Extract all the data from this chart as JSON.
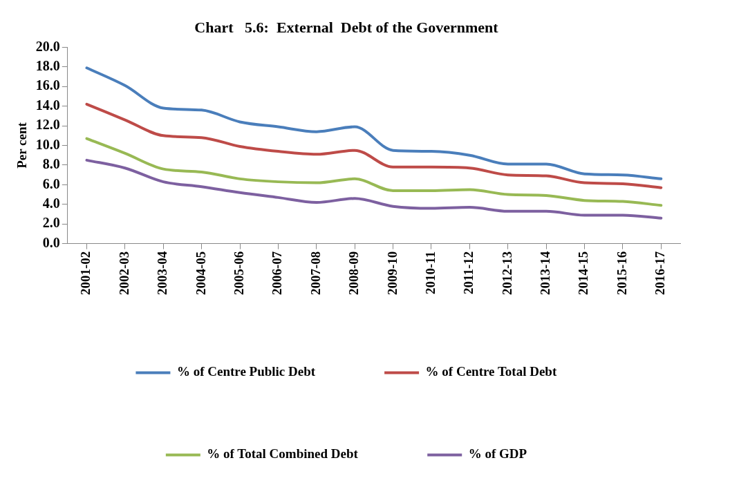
{
  "chart_data": {
    "type": "line",
    "title": "Chart   5.6:  External  Debt of the Government",
    "ylabel": "Per cent",
    "categories": [
      "2001-02",
      "2002-03",
      "2003-04",
      "2004-05",
      "2005-06",
      "2006-07",
      "2007-08",
      "2008-09",
      "2009-10",
      "2010-11",
      "2011-12",
      "2012-13",
      "2013-14",
      "2014-15",
      "2015-16",
      "2016-17"
    ],
    "series": [
      {
        "name": "% of Centre Public Debt",
        "color": "#4a7ebb",
        "values": [
          17.9,
          16.1,
          13.8,
          13.6,
          12.4,
          11.9,
          11.4,
          11.9,
          9.5,
          9.4,
          9.0,
          8.1,
          8.1,
          7.1,
          7.0,
          6.6
        ]
      },
      {
        "name": "% of Centre Total Debt",
        "color": "#be4b48",
        "values": [
          14.2,
          12.6,
          11.0,
          10.8,
          9.9,
          9.4,
          9.1,
          9.5,
          7.8,
          7.8,
          7.7,
          7.0,
          6.9,
          6.2,
          6.1,
          5.7
        ]
      },
      {
        "name": "% of Total Combined Debt",
        "color": "#98b954",
        "values": [
          10.7,
          9.2,
          7.6,
          7.3,
          6.6,
          6.3,
          6.2,
          6.6,
          5.4,
          5.4,
          5.5,
          5.0,
          4.9,
          4.4,
          4.3,
          3.9
        ]
      },
      {
        "name": "% of GDP",
        "color": "#7d60a0",
        "values": [
          8.5,
          7.7,
          6.3,
          5.8,
          5.2,
          4.7,
          4.2,
          4.6,
          3.8,
          3.6,
          3.7,
          3.3,
          3.3,
          2.9,
          2.9,
          2.6
        ]
      }
    ],
    "ylim": [
      0,
      20
    ],
    "yticks": [
      {
        "value": 0,
        "label": "0.0"
      },
      {
        "value": 2,
        "label": "2.0"
      },
      {
        "value": 4,
        "label": "4.0"
      },
      {
        "value": 6,
        "label": "6.0"
      },
      {
        "value": 8,
        "label": "8.0"
      },
      {
        "value": 10,
        "label": "10.0"
      },
      {
        "value": 12,
        "label": "12.0"
      },
      {
        "value": 14,
        "label": "14.0"
      },
      {
        "value": 16,
        "label": "16.0"
      },
      {
        "value": 18,
        "label": "18.0"
      },
      {
        "value": 20,
        "label": "20.0"
      }
    ],
    "legend": "bottom",
    "marker": "none",
    "line_style": "solid"
  }
}
